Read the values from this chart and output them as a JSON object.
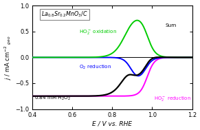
{
  "xlim": [
    0.4,
    1.2
  ],
  "ylim": [
    -1.0,
    1.0
  ],
  "xlabel": "E / V vs. RHE",
  "ylabel": "j / mA cm$^{-2}$$_{geo}$",
  "annotation_latex": "$La_{0.8}Sr_{0.2}MnO_3/C$",
  "label_ho2_ox": "HO$_2^-$ oxidation",
  "label_o2_red": "O$_2$ reduction",
  "label_ho2_red": "HO$_2^-$ reduction",
  "label_sum": "Sum",
  "label_conc": "0.84 mM H$_2$O$_2$",
  "color_ho2_ox": "#00cc00",
  "color_o2_red": "#0000ff",
  "color_ho2_red": "#ff00ff",
  "color_sum": "#000000",
  "figsize": [
    2.91,
    1.89
  ],
  "dpi": 100
}
